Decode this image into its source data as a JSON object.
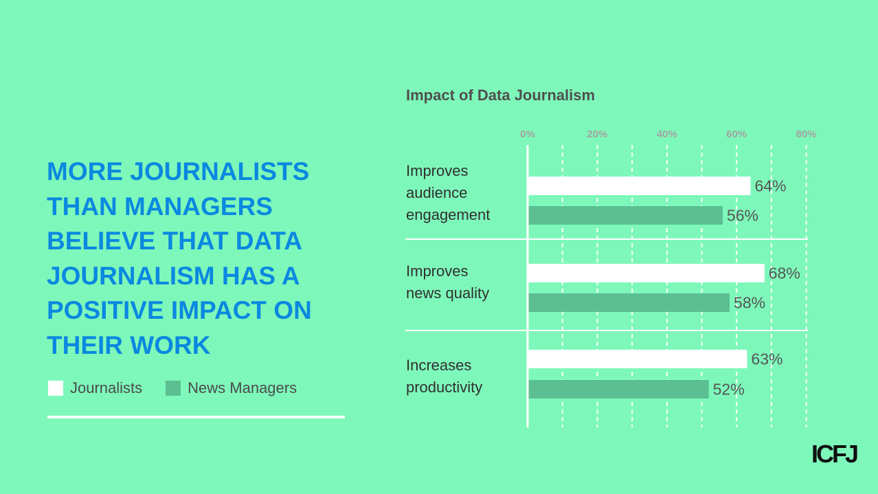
{
  "headline": "MORE JOURNALISTS THAN MANAGERS BELIEVE THAT DATA JOURNALISM HAS A POSITIVE IMPACT ON THEIR WORK",
  "legend": [
    {
      "label": "Journalists",
      "color": "#ffffff"
    },
    {
      "label": "News Managers",
      "color": "#5bbf92"
    }
  ],
  "logo": "ICFJ",
  "colors": {
    "background": "#7ef8ba",
    "headline": "#0b88e0"
  },
  "chart_data": {
    "type": "bar",
    "orientation": "horizontal",
    "title": "Impact of Data Journalism",
    "categories": [
      "Improves\naudience\nengagement",
      "Improves\nnews quality",
      "Increases\nproductivity"
    ],
    "series": [
      {
        "name": "Journalists",
        "values": [
          64,
          68,
          63
        ],
        "color": "#ffffff"
      },
      {
        "name": "News Managers",
        "values": [
          56,
          58,
          52
        ],
        "color": "#5bbf92"
      }
    ],
    "value_labels": [
      [
        "64%",
        "68%",
        "63%"
      ],
      [
        "56%",
        "58%",
        "52%"
      ]
    ],
    "xlim": [
      0,
      80
    ],
    "xticks": [
      0,
      20,
      40,
      60,
      80
    ],
    "xtick_labels": [
      "0%",
      "20%",
      "40%",
      "60%",
      "80%"
    ],
    "grid": true
  }
}
